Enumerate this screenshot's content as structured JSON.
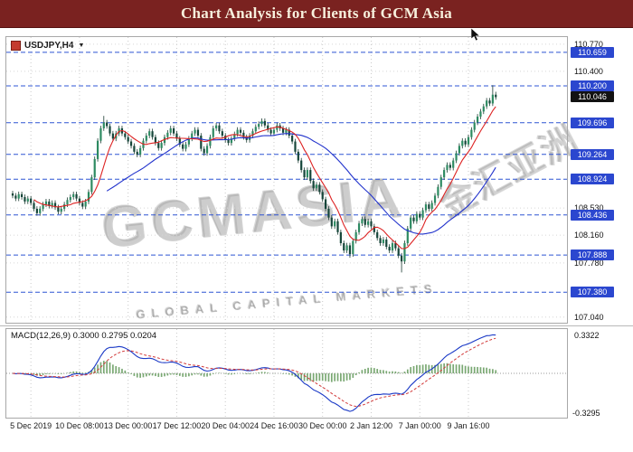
{
  "header": {
    "title": "Chart Analysis for Clients of GCM Asia",
    "bg": "#7a2220",
    "fg": "#f7f0dd"
  },
  "chart": {
    "symbol_label": "USDJPY,H4",
    "dropdown_glyph": "▼",
    "watermark": {
      "main": "GCMASIA",
      "sub": "GLOBAL CAPITAL MARKETS",
      "cjk": "金汇亚洲"
    }
  },
  "chart_data": {
    "type": "candlestick",
    "symbol": "USDJPY",
    "timeframe": "H4",
    "price_range": [
      106.95,
      110.88
    ],
    "x_tick_labels": [
      "5 Dec 2019",
      "10 Dec 08:00",
      "13 Dec 00:00",
      "17 Dec 12:00",
      "20 Dec 04:00",
      "24 Dec 16:00",
      "30 Dec 00:00",
      "2 Jan 12:00",
      "7 Jan 00:00",
      "9 Jan 16:00"
    ],
    "x_tick_first_index": 6,
    "x_tick_step": 16,
    "axis_price_labels": [
      "110.770",
      "110.400",
      "108.530",
      "108.160",
      "107.780",
      "107.040"
    ],
    "level_lines": [
      "110.659",
      "110.200",
      "109.696",
      "109.264",
      "108.924",
      "108.436",
      "107.888",
      "107.380"
    ],
    "current_price": "110.046",
    "closes": [
      108.7,
      108.66,
      108.72,
      108.68,
      108.62,
      108.66,
      108.6,
      108.52,
      108.46,
      108.52,
      108.58,
      108.62,
      108.56,
      108.6,
      108.54,
      108.48,
      108.52,
      108.58,
      108.64,
      108.68,
      108.72,
      108.66,
      108.6,
      108.55,
      108.62,
      108.75,
      108.95,
      109.2,
      109.45,
      109.62,
      109.7,
      109.65,
      109.55,
      109.48,
      109.55,
      109.62,
      109.55,
      109.5,
      109.44,
      109.38,
      109.3,
      109.26,
      109.35,
      109.45,
      109.52,
      109.58,
      109.5,
      109.42,
      109.35,
      109.42,
      109.5,
      109.56,
      109.62,
      109.55,
      109.48,
      109.4,
      109.34,
      109.4,
      109.48,
      109.55,
      109.6,
      109.52,
      109.34,
      109.28,
      109.38,
      109.5,
      109.62,
      109.66,
      109.58,
      109.52,
      109.46,
      109.42,
      109.48,
      109.54,
      109.6,
      109.56,
      109.5,
      109.46,
      109.52,
      109.58,
      109.64,
      109.68,
      109.72,
      109.66,
      109.6,
      109.55,
      109.6,
      109.66,
      109.62,
      109.56,
      109.6,
      109.52,
      109.44,
      109.3,
      109.18,
      109.05,
      108.95,
      109.05,
      108.9,
      108.8,
      108.85,
      108.75,
      108.65,
      108.52,
      108.4,
      108.28,
      108.35,
      108.2,
      108.05,
      107.95,
      108.02,
      107.9,
      108.08,
      108.2,
      108.32,
      108.38,
      108.3,
      108.35,
      108.28,
      108.2,
      108.12,
      108.05,
      108.1,
      108.0,
      107.95,
      108.05,
      107.98,
      107.88,
      107.8,
      108.05,
      108.25,
      108.4,
      108.35,
      108.45,
      108.4,
      108.5,
      108.58,
      108.52,
      108.6,
      108.7,
      108.82,
      108.95,
      109.05,
      109.12,
      109.08,
      109.18,
      109.28,
      109.38,
      109.45,
      109.4,
      109.5,
      109.6,
      109.7,
      109.78,
      109.85,
      109.92,
      110.0,
      109.96,
      110.08,
      110.046
    ],
    "wick": 0.035,
    "wick_overrides": {
      "30": {
        "high": 109.79
      },
      "111": {
        "low": 107.85
      },
      "128": {
        "low": 107.65
      },
      "158": {
        "high": 110.21
      },
      "159": {
        "high": 110.12
      }
    },
    "ma_fast_period": 8,
    "ma_slow_period": 32,
    "macd": {
      "label": "MACD(12,26,9) 0.3000 0.2795 0.0204",
      "fast": 12,
      "slow": 26,
      "signal": 9,
      "scale_max_label": "0.3322",
      "scale_min_label": "-0.3295"
    },
    "colors": {
      "up": "#2e8b62",
      "down": "#16463a",
      "wick": "#1b3b31",
      "ma_fast": "#dd2222",
      "ma_slow": "#2233cc",
      "macd_line": "#1a39c6",
      "signal_line": "#d23a3a",
      "histogram": "#7aa873",
      "level_line": "#2f55d4",
      "badge_bg": "#2b47cf",
      "current_badge_bg": "#121212",
      "grid": "#c9c9c9"
    }
  }
}
